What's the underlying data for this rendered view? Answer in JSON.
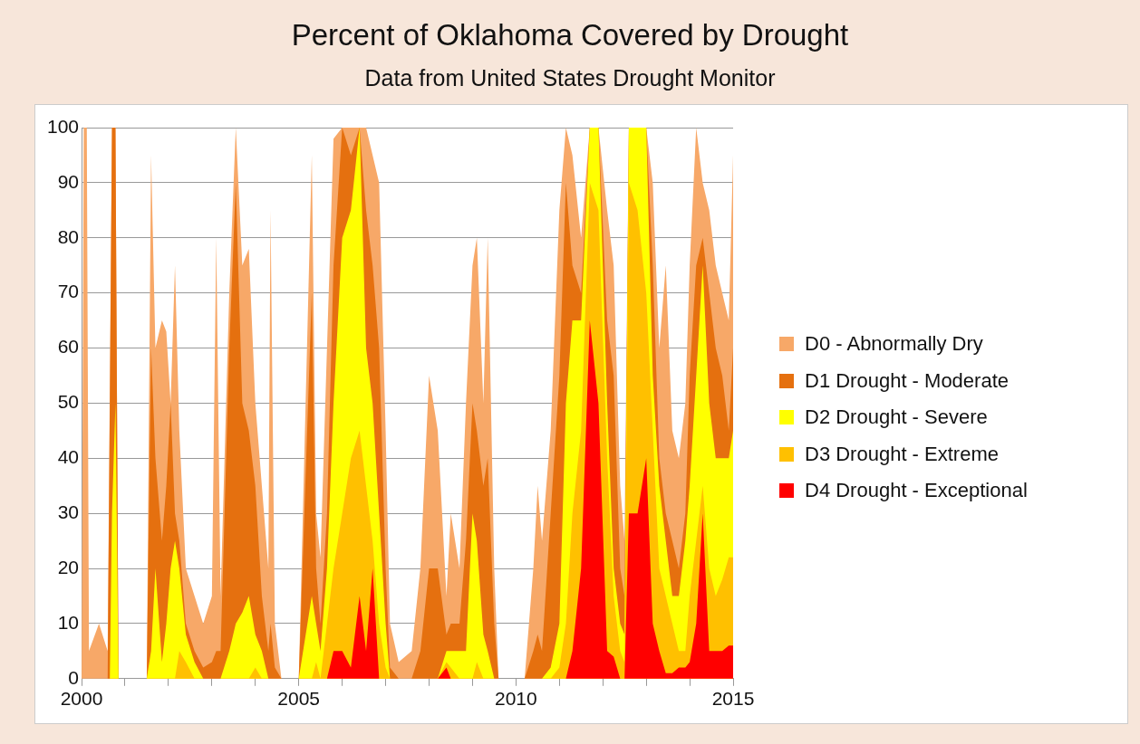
{
  "chart_data": {
    "type": "area",
    "title": "Percent of Oklahoma Covered by Drought",
    "subtitle": "Data from United States Drought Monitor",
    "x": [
      2000.0,
      2000.05,
      2000.12,
      2000.17,
      2000.4,
      2000.6,
      2000.7,
      2000.78,
      2000.85,
      2001.5,
      2001.6,
      2001.7,
      2001.85,
      2001.95,
      2002.05,
      2002.15,
      2002.25,
      2002.4,
      2002.6,
      2002.8,
      2003.0,
      2003.1,
      2003.2,
      2003.4,
      2003.55,
      2003.7,
      2003.85,
      2004.0,
      2004.15,
      2004.3,
      2004.35,
      2004.45,
      2004.6,
      2005.0,
      2005.3,
      2005.4,
      2005.5,
      2005.65,
      2005.8,
      2006.0,
      2006.2,
      2006.4,
      2006.55,
      2006.7,
      2006.85,
      2007.0,
      2007.1,
      2007.3,
      2007.6,
      2007.8,
      2008.0,
      2008.2,
      2008.4,
      2008.5,
      2008.7,
      2008.85,
      2009.0,
      2009.1,
      2009.25,
      2009.35,
      2009.5,
      2009.6,
      2010.2,
      2010.4,
      2010.5,
      2010.6,
      2010.8,
      2011.0,
      2011.15,
      2011.3,
      2011.5,
      2011.7,
      2011.9,
      2012.1,
      2012.25,
      2012.4,
      2012.5,
      2012.6,
      2012.8,
      2013.0,
      2013.15,
      2013.3,
      2013.45,
      2013.6,
      2013.75,
      2013.9,
      2014.0,
      2014.15,
      2014.3,
      2014.45,
      2014.6,
      2014.75,
      2014.9,
      2015.0
    ],
    "series": [
      {
        "name": "D0 - Abnormally Dry",
        "color": "#f7a868",
        "values": [
          0,
          100,
          100,
          5,
          10,
          5,
          100,
          100,
          0,
          0,
          95,
          60,
          65,
          63,
          50,
          75,
          45,
          20,
          15,
          10,
          15,
          80,
          15,
          70,
          100,
          75,
          78,
          50,
          35,
          20,
          85,
          10,
          0,
          0,
          95,
          30,
          22,
          60,
          98,
          100,
          100,
          100,
          100,
          95,
          90,
          45,
          10,
          3,
          5,
          20,
          55,
          45,
          15,
          30,
          20,
          50,
          75,
          80,
          50,
          80,
          20,
          0,
          0,
          20,
          35,
          25,
          45,
          85,
          100,
          95,
          80,
          100,
          100,
          85,
          75,
          35,
          25,
          100,
          100,
          100,
          90,
          60,
          75,
          45,
          40,
          50,
          75,
          100,
          90,
          85,
          75,
          70,
          65,
          95
        ]
      },
      {
        "name": "D1 Drought - Moderate",
        "color": "#e5700f",
        "x": [
          2000.6,
          2000.7,
          2000.78,
          2000.85,
          2001.5,
          2001.6,
          2001.7,
          2001.85,
          2001.95,
          2002.05,
          2002.15,
          2002.25,
          2002.4,
          2002.6,
          2002.8,
          2003.0,
          2003.1,
          2003.2,
          2003.4,
          2003.55,
          2003.7,
          2003.85,
          2004.0,
          2004.15,
          2004.3,
          2004.35,
          2004.45,
          2004.6,
          2005.0,
          2005.3,
          2005.4,
          2005.5,
          2005.65,
          2005.8,
          2006.0,
          2006.2,
          2006.4,
          2006.55,
          2006.7,
          2006.85,
          2007.0,
          2007.1,
          2007.3,
          2007.6,
          2007.8,
          2008.0,
          2008.2,
          2008.4,
          2008.5,
          2008.7,
          2008.85,
          2009.0,
          2009.1,
          2009.25,
          2009.35,
          2009.5,
          2009.6,
          2010.2,
          2010.4,
          2010.5,
          2010.6,
          2010.8,
          2011.0,
          2011.15,
          2011.3,
          2011.5,
          2011.7,
          2011.9,
          2012.1,
          2012.25,
          2012.4,
          2012.5,
          2012.6,
          2012.8,
          2013.0,
          2013.15,
          2013.3,
          2013.45,
          2013.6,
          2013.75,
          2013.9,
          2014.0,
          2014.15,
          2014.3,
          2014.45,
          2014.6,
          2014.75,
          2014.9,
          2015.0
        ],
        "values": [
          0,
          100,
          100,
          0,
          0,
          60,
          40,
          25,
          35,
          50,
          30,
          25,
          10,
          5,
          2,
          3,
          5,
          5,
          60,
          90,
          50,
          45,
          35,
          15,
          5,
          10,
          2,
          0,
          0,
          70,
          20,
          10,
          30,
          75,
          100,
          95,
          100,
          85,
          75,
          60,
          20,
          2,
          0,
          0,
          5,
          20,
          20,
          8,
          10,
          10,
          25,
          50,
          45,
          35,
          40,
          10,
          0,
          0,
          5,
          8,
          5,
          30,
          55,
          90,
          75,
          70,
          100,
          100,
          65,
          55,
          20,
          15,
          100,
          100,
          100,
          75,
          40,
          30,
          25,
          20,
          30,
          55,
          75,
          80,
          70,
          60,
          55,
          45,
          60
        ]
      },
      {
        "name": "D2 Drought - Severe",
        "color": "#ffff00",
        "x": [
          2000.65,
          2000.7,
          2000.78,
          2000.85,
          2001.5,
          2001.6,
          2001.7,
          2001.85,
          2001.95,
          2002.05,
          2002.15,
          2002.25,
          2002.4,
          2002.6,
          2002.8,
          2003.0,
          2003.1,
          2003.2,
          2003.4,
          2003.55,
          2003.7,
          2003.85,
          2004.0,
          2004.15,
          2004.3,
          2004.35,
          2004.45,
          2004.6,
          2005.0,
          2005.3,
          2005.4,
          2005.5,
          2005.65,
          2005.8,
          2006.0,
          2006.2,
          2006.4,
          2006.55,
          2006.7,
          2006.85,
          2007.0,
          2007.1,
          2007.3,
          2007.6,
          2007.8,
          2008.0,
          2008.2,
          2008.4,
          2008.5,
          2008.7,
          2008.85,
          2009.0,
          2009.1,
          2009.25,
          2009.35,
          2009.5,
          2009.6,
          2010.2,
          2010.4,
          2010.5,
          2010.6,
          2010.8,
          2011.0,
          2011.15,
          2011.3,
          2011.5,
          2011.7,
          2011.9,
          2012.1,
          2012.25,
          2012.4,
          2012.5,
          2012.6,
          2012.8,
          2013.0,
          2013.15,
          2013.3,
          2013.45,
          2013.6,
          2013.75,
          2013.9,
          2014.0,
          2014.15,
          2014.3,
          2014.45,
          2014.6,
          2014.75,
          2014.9,
          2015.0
        ],
        "values": [
          0,
          30,
          50,
          0,
          0,
          5,
          20,
          3,
          10,
          20,
          25,
          20,
          8,
          3,
          0,
          0,
          0,
          0,
          5,
          10,
          12,
          15,
          8,
          5,
          0,
          0,
          0,
          0,
          0,
          15,
          10,
          5,
          20,
          50,
          80,
          85,
          100,
          60,
          50,
          30,
          10,
          0,
          0,
          0,
          0,
          0,
          0,
          5,
          5,
          5,
          5,
          30,
          25,
          8,
          5,
          0,
          0,
          0,
          0,
          0,
          0,
          2,
          10,
          50,
          65,
          65,
          100,
          100,
          50,
          20,
          10,
          8,
          100,
          100,
          100,
          55,
          35,
          25,
          15,
          15,
          25,
          35,
          55,
          75,
          50,
          40,
          40,
          40,
          45
        ]
      },
      {
        "name": "D3 Drought - Extreme",
        "color": "#ffc000",
        "values": [
          0,
          0,
          0,
          0,
          0,
          0,
          0,
          0,
          0,
          0,
          0,
          0,
          0,
          0,
          0,
          0,
          5,
          3,
          0,
          0,
          0,
          0,
          0,
          0,
          0,
          0,
          0,
          2,
          0,
          0,
          0,
          0,
          0,
          0,
          0,
          3,
          0,
          10,
          20,
          30,
          40,
          45,
          35,
          25,
          10,
          2,
          0,
          0,
          0,
          0,
          0,
          0,
          3,
          2,
          0,
          0,
          0,
          3,
          0,
          0,
          0,
          0,
          0,
          0,
          0,
          0,
          0,
          2,
          10,
          30,
          45,
          90,
          85,
          40,
          15,
          5,
          3,
          90,
          85,
          70,
          45,
          20,
          15,
          10,
          5,
          5,
          15,
          25,
          35,
          20,
          15,
          18,
          22,
          22
        ]
      },
      {
        "name": "D4 Drought - Exceptional",
        "color": "#ff0000",
        "values": [
          0,
          0,
          0,
          0,
          0,
          0,
          0,
          0,
          0,
          0,
          0,
          0,
          0,
          0,
          0,
          0,
          0,
          0,
          0,
          0,
          0,
          0,
          0,
          0,
          0,
          0,
          0,
          0,
          0,
          0,
          0,
          0,
          0,
          0,
          0,
          0,
          0,
          0,
          5,
          5,
          2,
          15,
          5,
          20,
          0,
          0,
          0,
          0,
          0,
          0,
          0,
          0,
          2,
          0,
          0,
          0,
          0,
          0,
          0,
          0,
          0,
          0,
          0,
          0,
          0,
          0,
          0,
          0,
          0,
          5,
          20,
          65,
          50,
          5,
          4,
          0,
          0,
          30,
          30,
          40,
          10,
          5,
          1,
          1,
          2,
          2,
          3,
          10,
          30,
          5,
          5,
          5,
          6,
          6
        ]
      }
    ],
    "xlim": [
      2000,
      2015
    ],
    "xticks": [
      2000,
      {
        "value": 2001,
        "label": null
      },
      {
        "value": 2002,
        "label": null
      },
      {
        "value": 2003,
        "label": null
      },
      {
        "value": 2004,
        "label": null
      },
      2005,
      {
        "value": 2006,
        "label": null
      },
      {
        "value": 2007,
        "label": null
      },
      {
        "value": 2008,
        "label": null
      },
      {
        "value": 2009,
        "label": null
      },
      2010,
      {
        "value": 2011,
        "label": null
      },
      {
        "value": 2012,
        "label": null
      },
      {
        "value": 2013,
        "label": null
      },
      {
        "value": 2014,
        "label": null
      },
      2015
    ],
    "ylim": [
      0,
      100
    ],
    "yticks": [
      0,
      10,
      20,
      30,
      40,
      50,
      60,
      70,
      80,
      90,
      100
    ],
    "grid": "y",
    "legend": "right"
  }
}
